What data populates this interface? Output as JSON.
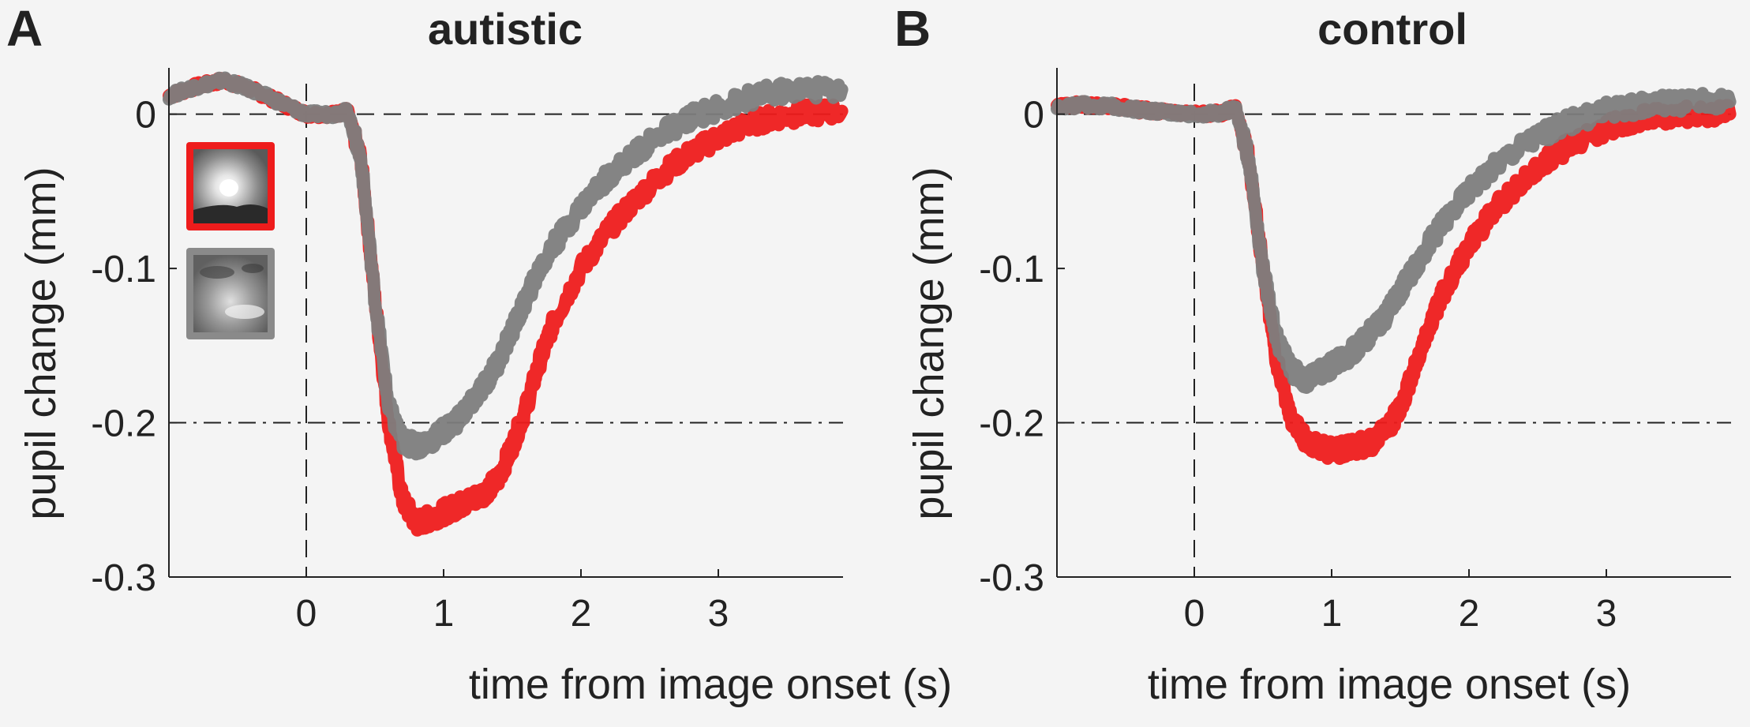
{
  "colors": {
    "bright_image": "#ee1c1c",
    "scrambled_image": "#7d7d7d",
    "axis": "#222222",
    "background": "#f4f4f4"
  },
  "legend_icons": [
    "bright-natural-image-icon",
    "phase-scrambled-image-icon"
  ],
  "chart_data": [
    {
      "type": "line",
      "panel_letter": "A",
      "title": "autistic",
      "xlabel": "time from image onset (s)",
      "ylabel": "pupil change (mm)",
      "xlim": [
        -1,
        3.9
      ],
      "ylim": [
        -0.3,
        0.03
      ],
      "xticks": [
        0,
        1,
        2,
        3
      ],
      "xtick_labels": [
        "0",
        "1",
        "2",
        "3"
      ],
      "yticks": [
        0,
        -0.1,
        -0.2,
        -0.3
      ],
      "ytick_labels": [
        "0",
        "-0.1",
        "-0.2",
        "-0.3"
      ],
      "reference_lines": [
        {
          "axis": "y",
          "value": 0,
          "style": "dashed"
        },
        {
          "axis": "y",
          "value": -0.2,
          "style": "dash-dot"
        },
        {
          "axis": "x",
          "value": 0,
          "style": "dashed"
        }
      ],
      "series": [
        {
          "name": "bright image",
          "color": "#ee1c1c",
          "x": [
            -1,
            -0.8,
            -0.6,
            -0.4,
            -0.2,
            0,
            0.2,
            0.3,
            0.4,
            0.5,
            0.6,
            0.7,
            0.8,
            0.9,
            1.0,
            1.1,
            1.2,
            1.3,
            1.4,
            1.5,
            1.6,
            1.7,
            1.8,
            2.0,
            2.2,
            2.4,
            2.6,
            2.8,
            3.0,
            3.2,
            3.4,
            3.6,
            3.9
          ],
          "values": [
            0.012,
            0.018,
            0.022,
            0.016,
            0.008,
            0.0,
            0.0,
            0.002,
            -0.03,
            -0.12,
            -0.2,
            -0.25,
            -0.265,
            -0.262,
            -0.258,
            -0.254,
            -0.25,
            -0.245,
            -0.236,
            -0.215,
            -0.19,
            -0.16,
            -0.135,
            -0.1,
            -0.075,
            -0.055,
            -0.038,
            -0.025,
            -0.015,
            -0.007,
            -0.002,
            0.0,
            0.002
          ],
          "band": 0.012
        },
        {
          "name": "scrambled image",
          "color": "#7d7d7d",
          "x": [
            -1,
            -0.8,
            -0.6,
            -0.4,
            -0.2,
            0,
            0.2,
            0.3,
            0.4,
            0.5,
            0.6,
            0.7,
            0.8,
            0.9,
            1.0,
            1.1,
            1.2,
            1.3,
            1.4,
            1.5,
            1.6,
            1.7,
            1.8,
            2.0,
            2.2,
            2.4,
            2.6,
            2.8,
            3.0,
            3.2,
            3.4,
            3.6,
            3.9
          ],
          "values": [
            0.012,
            0.018,
            0.022,
            0.016,
            0.008,
            0.0,
            0.0,
            0.002,
            -0.03,
            -0.12,
            -0.19,
            -0.212,
            -0.215,
            -0.212,
            -0.205,
            -0.198,
            -0.188,
            -0.175,
            -0.16,
            -0.14,
            -0.12,
            -0.1,
            -0.085,
            -0.06,
            -0.04,
            -0.025,
            -0.012,
            -0.002,
            0.004,
            0.01,
            0.014,
            0.016,
            0.016
          ],
          "band": 0.012
        }
      ]
    },
    {
      "type": "line",
      "panel_letter": "B",
      "title": "control",
      "xlabel": "time from image onset (s)",
      "ylabel": "pupil change (mm)",
      "xlim": [
        -1,
        3.9
      ],
      "ylim": [
        -0.3,
        0.03
      ],
      "xticks": [
        0,
        1,
        2,
        3
      ],
      "xtick_labels": [
        "0",
        "1",
        "2",
        "3"
      ],
      "yticks": [
        0,
        -0.1,
        -0.2,
        -0.3
      ],
      "ytick_labels": [
        "0",
        "-0.1",
        "-0.2",
        "-0.3"
      ],
      "reference_lines": [
        {
          "axis": "y",
          "value": 0,
          "style": "dashed"
        },
        {
          "axis": "y",
          "value": -0.2,
          "style": "dash-dot"
        },
        {
          "axis": "x",
          "value": 0,
          "style": "dashed"
        }
      ],
      "series": [
        {
          "name": "bright image",
          "color": "#ee1c1c",
          "x": [
            -1,
            -0.8,
            -0.6,
            -0.4,
            -0.2,
            0,
            0.2,
            0.3,
            0.4,
            0.5,
            0.6,
            0.7,
            0.8,
            0.9,
            1.0,
            1.1,
            1.2,
            1.3,
            1.4,
            1.5,
            1.6,
            1.7,
            1.8,
            2.0,
            2.2,
            2.4,
            2.6,
            2.8,
            3.0,
            3.2,
            3.4,
            3.6,
            3.9
          ],
          "values": [
            0.005,
            0.006,
            0.005,
            0.003,
            0.001,
            0.0,
            0.001,
            0.004,
            -0.03,
            -0.1,
            -0.16,
            -0.195,
            -0.21,
            -0.216,
            -0.218,
            -0.217,
            -0.215,
            -0.212,
            -0.205,
            -0.19,
            -0.165,
            -0.14,
            -0.118,
            -0.085,
            -0.06,
            -0.042,
            -0.028,
            -0.017,
            -0.009,
            -0.004,
            -0.001,
            0.0,
            0.0
          ],
          "band": 0.012
        },
        {
          "name": "scrambled image",
          "color": "#7d7d7d",
          "x": [
            -1,
            -0.8,
            -0.6,
            -0.4,
            -0.2,
            0,
            0.2,
            0.3,
            0.4,
            0.5,
            0.6,
            0.7,
            0.8,
            0.9,
            1.0,
            1.1,
            1.2,
            1.3,
            1.4,
            1.5,
            1.6,
            1.7,
            1.8,
            2.0,
            2.2,
            2.4,
            2.6,
            2.8,
            3.0,
            3.2,
            3.4,
            3.6,
            3.9
          ],
          "values": [
            0.005,
            0.006,
            0.005,
            0.003,
            0.001,
            0.0,
            0.001,
            0.004,
            -0.03,
            -0.1,
            -0.145,
            -0.165,
            -0.172,
            -0.168,
            -0.163,
            -0.158,
            -0.15,
            -0.14,
            -0.13,
            -0.115,
            -0.1,
            -0.085,
            -0.072,
            -0.05,
            -0.033,
            -0.02,
            -0.01,
            -0.003,
            0.002,
            0.005,
            0.007,
            0.008,
            0.008
          ],
          "band": 0.012
        }
      ]
    }
  ]
}
